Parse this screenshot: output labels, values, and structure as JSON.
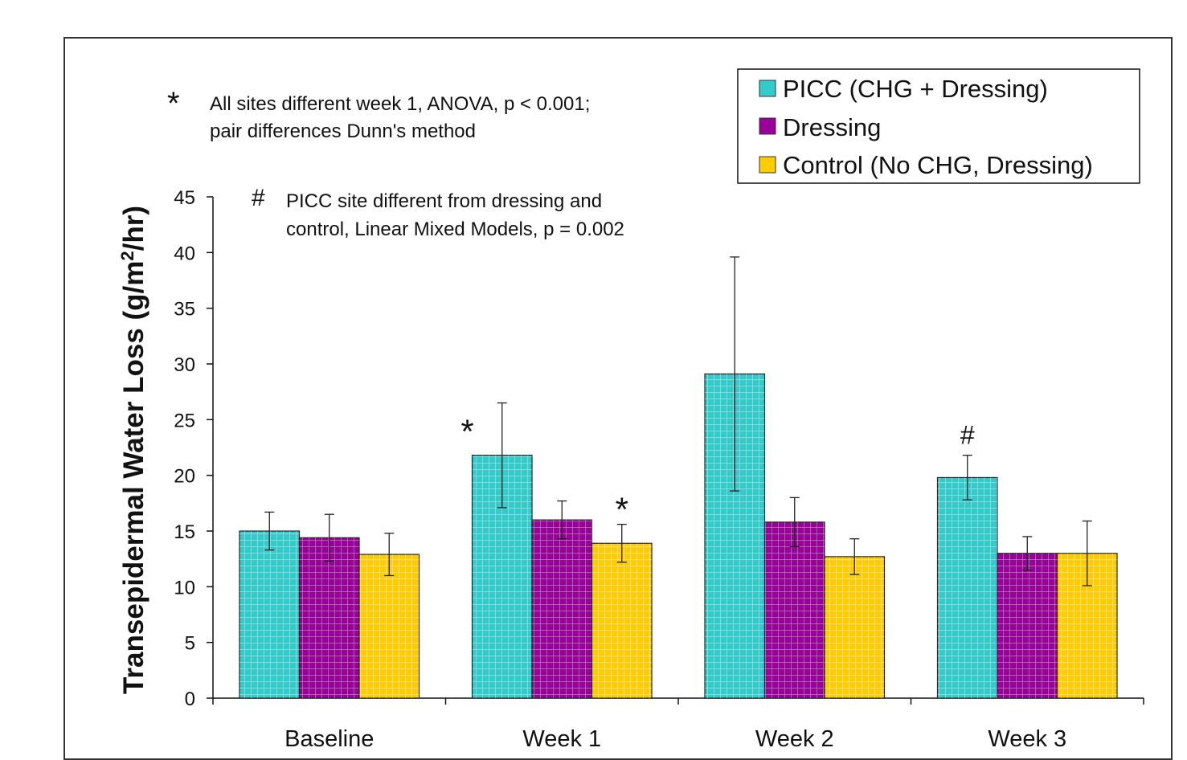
{
  "chart_data": {
    "type": "bar",
    "categories": [
      "Baseline",
      "Week 1",
      "Week 2",
      "Week 3"
    ],
    "ylabel_main": "Transepidermal Water Loss (g/m",
    "ylabel_sup": "2",
    "ylabel_end": "/hr)",
    "ylim": [
      0,
      45
    ],
    "yticks": [
      "0",
      "5",
      "10",
      "15",
      "20",
      "25",
      "30",
      "35",
      "40",
      "45"
    ],
    "grid": false,
    "legend_position": "top-right",
    "series": [
      {
        "name": "PICC (CHG + Dressing)",
        "color": "#33cccc",
        "values": [
          15.0,
          21.8,
          29.1,
          19.8
        ],
        "error": [
          1.7,
          4.7,
          10.5,
          2.0
        ]
      },
      {
        "name": "Dressing",
        "color": "#990099",
        "values": [
          14.4,
          16.0,
          15.8,
          13.0
        ],
        "error": [
          2.1,
          1.7,
          2.2,
          1.5
        ]
      },
      {
        "name": "Control (No CHG, Dressing)",
        "color": "#ffcc00",
        "values": [
          12.9,
          13.9,
          12.7,
          13.0
        ],
        "error": [
          1.9,
          1.7,
          1.6,
          2.9
        ]
      }
    ],
    "annotations": {
      "star_symbol": "*",
      "star_note_line1": "All sites different week 1, ANOVA, p < 0.001;",
      "star_note_line2": "pair differences Dunn's method",
      "hash_symbol": "#",
      "hash_note_line1": "PICC site different from dressing and",
      "hash_note_line2": "control, Linear Mixed Models, p = 0.002",
      "bar_marks": [
        {
          "symbol": "*",
          "category": "Week 1",
          "series": 0
        },
        {
          "symbol": "*",
          "category": "Week 1",
          "series": 2
        },
        {
          "symbol": "#",
          "category": "Week 3",
          "series": 0
        }
      ]
    }
  }
}
